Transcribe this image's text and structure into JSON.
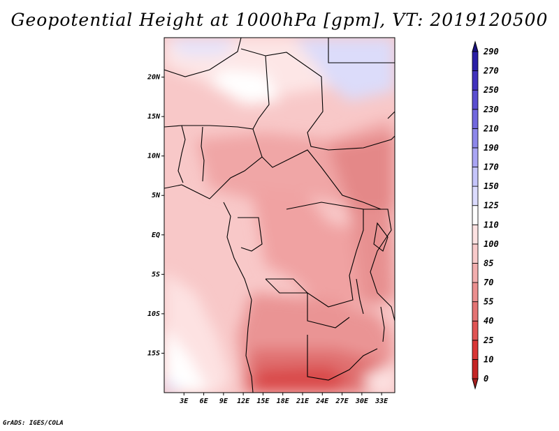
{
  "title": "Geopotential Height at 1000hPa [gpm], VT: 2019120500",
  "credit": "GrADS: IGES/COLA",
  "map": {
    "lat_labels": [
      "20N",
      "15N",
      "10N",
      "5N",
      "EQ",
      "5S",
      "10S",
      "15S"
    ],
    "lon_labels": [
      "3E",
      "6E",
      "9E",
      "12E",
      "15E",
      "18E",
      "21E",
      "24E",
      "27E",
      "30E",
      "33E"
    ],
    "lon_range": [
      0,
      35
    ],
    "lat_range": [
      -20,
      25
    ]
  },
  "colorbar": {
    "levels": [
      "0",
      "10",
      "25",
      "40",
      "55",
      "70",
      "85",
      "100",
      "110",
      "125",
      "150",
      "170",
      "190",
      "210",
      "230",
      "250",
      "270",
      "290"
    ],
    "colors": [
      "#a51f1f",
      "#c42525",
      "#d93636",
      "#e05454",
      "#e47373",
      "#eb8f8f",
      "#f2aeae",
      "#f8caca",
      "#fde2e2",
      "#ffffff",
      "#dcdcff",
      "#c5c5fb",
      "#a9a5f4",
      "#8d87ea",
      "#7168de",
      "#5a4ed0",
      "#4132bd",
      "#2a1ea6",
      "#1a1180"
    ]
  }
}
